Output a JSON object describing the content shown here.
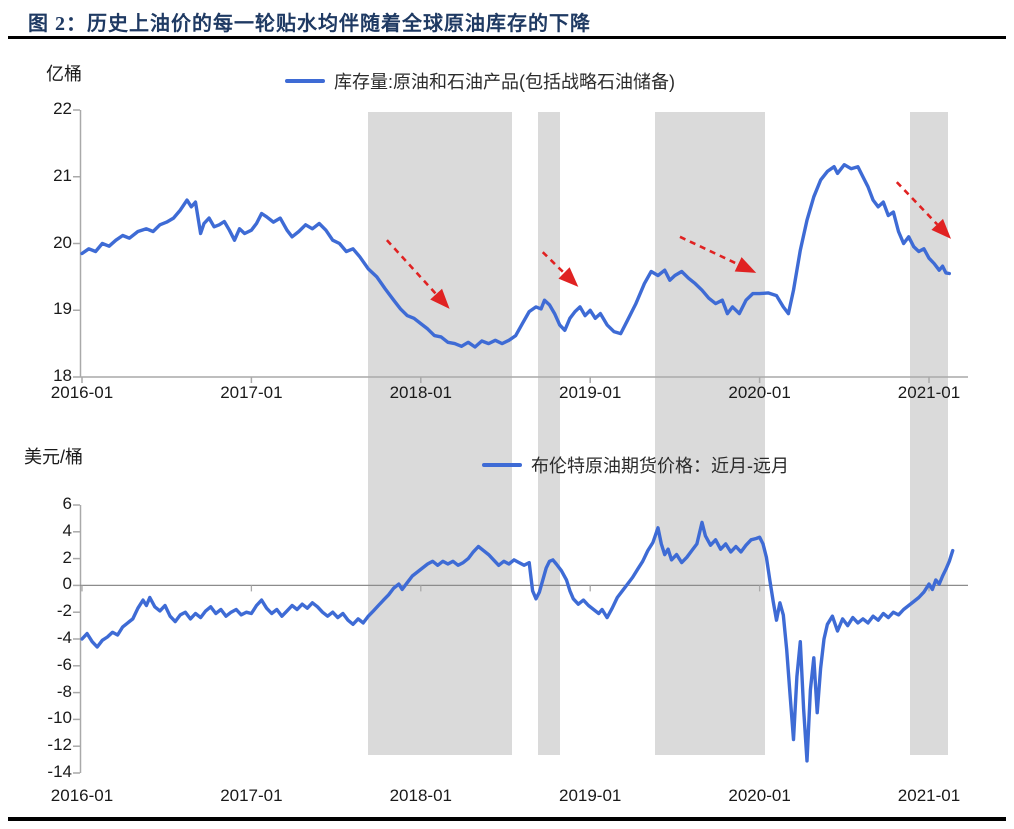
{
  "title": "图 2：历史上油价的每一轮贴水均伴随着全球原油库存的下降",
  "colors": {
    "line_blue": "#3E6BD5",
    "arrow_red": "#E02222",
    "band_gray": "#DADADA",
    "axis_gray": "#A9A9A9",
    "zero_line_gray": "#8C8C8C",
    "title_navy": "#1F3A63"
  },
  "shaded_bands": {
    "color": "#DADADA",
    "x_unit": "years_since_2016-01",
    "x_ranges": [
      [
        1.69,
        2.54
      ],
      [
        2.69,
        2.82
      ],
      [
        3.38,
        4.03
      ],
      [
        4.89,
        5.11
      ]
    ]
  },
  "chart_data": [
    {
      "type": "line",
      "legend": "库存量:原油和石油产品(包括战略石油储备)",
      "ylabel": "亿桶",
      "ylim": [
        18,
        22
      ],
      "yticks": [
        22,
        21,
        20,
        19,
        18
      ],
      "xticks": [
        "2016-01",
        "2017-01",
        "2018-01",
        "2019-01",
        "2020-01",
        "2021-01"
      ],
      "grid": false,
      "legend_position": "top-center",
      "arrows": [
        {
          "from": [
            1.8,
            20.05
          ],
          "to": [
            2.17,
            19.02
          ]
        },
        {
          "from": [
            2.72,
            19.87
          ],
          "to": [
            2.93,
            19.35
          ]
        },
        {
          "from": [
            3.53,
            20.1
          ],
          "to": [
            3.98,
            19.56
          ]
        },
        {
          "from": [
            4.81,
            20.92
          ],
          "to": [
            5.13,
            20.07
          ]
        }
      ],
      "points": [
        [
          0.0,
          19.85
        ],
        [
          0.04,
          19.92
        ],
        [
          0.08,
          19.88
        ],
        [
          0.12,
          20.0
        ],
        [
          0.16,
          19.96
        ],
        [
          0.2,
          20.05
        ],
        [
          0.24,
          20.12
        ],
        [
          0.28,
          20.08
        ],
        [
          0.33,
          20.18
        ],
        [
          0.38,
          20.22
        ],
        [
          0.42,
          20.18
        ],
        [
          0.46,
          20.28
        ],
        [
          0.5,
          20.32
        ],
        [
          0.54,
          20.38
        ],
        [
          0.58,
          20.5
        ],
        [
          0.62,
          20.65
        ],
        [
          0.645,
          20.55
        ],
        [
          0.67,
          20.62
        ],
        [
          0.7,
          20.15
        ],
        [
          0.72,
          20.3
        ],
        [
          0.75,
          20.38
        ],
        [
          0.78,
          20.25
        ],
        [
          0.81,
          20.28
        ],
        [
          0.84,
          20.33
        ],
        [
          0.87,
          20.2
        ],
        [
          0.9,
          20.05
        ],
        [
          0.93,
          20.22
        ],
        [
          0.96,
          20.15
        ],
        [
          1.0,
          20.2
        ],
        [
          1.03,
          20.3
        ],
        [
          1.06,
          20.45
        ],
        [
          1.09,
          20.4
        ],
        [
          1.13,
          20.32
        ],
        [
          1.17,
          20.38
        ],
        [
          1.21,
          20.2
        ],
        [
          1.24,
          20.1
        ],
        [
          1.28,
          20.18
        ],
        [
          1.32,
          20.28
        ],
        [
          1.36,
          20.22
        ],
        [
          1.4,
          20.3
        ],
        [
          1.44,
          20.2
        ],
        [
          1.48,
          20.05
        ],
        [
          1.52,
          20.0
        ],
        [
          1.56,
          19.88
        ],
        [
          1.6,
          19.92
        ],
        [
          1.64,
          19.8
        ],
        [
          1.69,
          19.62
        ],
        [
          1.74,
          19.5
        ],
        [
          1.79,
          19.32
        ],
        [
          1.84,
          19.15
        ],
        [
          1.88,
          19.02
        ],
        [
          1.92,
          18.92
        ],
        [
          1.96,
          18.88
        ],
        [
          2.0,
          18.8
        ],
        [
          2.04,
          18.72
        ],
        [
          2.08,
          18.62
        ],
        [
          2.12,
          18.6
        ],
        [
          2.16,
          18.52
        ],
        [
          2.2,
          18.5
        ],
        [
          2.24,
          18.46
        ],
        [
          2.28,
          18.52
        ],
        [
          2.32,
          18.45
        ],
        [
          2.36,
          18.54
        ],
        [
          2.4,
          18.5
        ],
        [
          2.44,
          18.55
        ],
        [
          2.48,
          18.5
        ],
        [
          2.52,
          18.55
        ],
        [
          2.56,
          18.62
        ],
        [
          2.6,
          18.8
        ],
        [
          2.64,
          18.98
        ],
        [
          2.68,
          19.05
        ],
        [
          2.71,
          19.02
        ],
        [
          2.73,
          19.15
        ],
        [
          2.76,
          19.08
        ],
        [
          2.79,
          18.95
        ],
        [
          2.82,
          18.78
        ],
        [
          2.85,
          18.7
        ],
        [
          2.88,
          18.88
        ],
        [
          2.91,
          18.98
        ],
        [
          2.94,
          19.05
        ],
        [
          2.97,
          18.92
        ],
        [
          3.0,
          19.0
        ],
        [
          3.03,
          18.88
        ],
        [
          3.06,
          18.95
        ],
        [
          3.1,
          18.78
        ],
        [
          3.14,
          18.68
        ],
        [
          3.18,
          18.65
        ],
        [
          3.22,
          18.85
        ],
        [
          3.27,
          19.1
        ],
        [
          3.32,
          19.4
        ],
        [
          3.36,
          19.58
        ],
        [
          3.4,
          19.52
        ],
        [
          3.44,
          19.6
        ],
        [
          3.47,
          19.45
        ],
        [
          3.5,
          19.52
        ],
        [
          3.54,
          19.58
        ],
        [
          3.58,
          19.48
        ],
        [
          3.62,
          19.4
        ],
        [
          3.66,
          19.3
        ],
        [
          3.7,
          19.18
        ],
        [
          3.74,
          19.1
        ],
        [
          3.78,
          19.15
        ],
        [
          3.81,
          18.95
        ],
        [
          3.84,
          19.05
        ],
        [
          3.88,
          18.95
        ],
        [
          3.92,
          19.15
        ],
        [
          3.96,
          19.25
        ],
        [
          4.0,
          19.25
        ],
        [
          4.05,
          19.26
        ],
        [
          4.1,
          19.22
        ],
        [
          4.14,
          19.05
        ],
        [
          4.17,
          18.95
        ],
        [
          4.2,
          19.3
        ],
        [
          4.24,
          19.9
        ],
        [
          4.28,
          20.35
        ],
        [
          4.32,
          20.7
        ],
        [
          4.36,
          20.95
        ],
        [
          4.4,
          21.08
        ],
        [
          4.44,
          21.15
        ],
        [
          4.46,
          21.05
        ],
        [
          4.5,
          21.18
        ],
        [
          4.54,
          21.12
        ],
        [
          4.58,
          21.15
        ],
        [
          4.61,
          21.0
        ],
        [
          4.64,
          20.85
        ],
        [
          4.67,
          20.65
        ],
        [
          4.7,
          20.55
        ],
        [
          4.73,
          20.62
        ],
        [
          4.76,
          20.42
        ],
        [
          4.79,
          20.47
        ],
        [
          4.82,
          20.18
        ],
        [
          4.85,
          20.0
        ],
        [
          4.88,
          20.1
        ],
        [
          4.91,
          19.95
        ],
        [
          4.94,
          19.88
        ],
        [
          4.97,
          19.92
        ],
        [
          5.0,
          19.78
        ],
        [
          5.03,
          19.7
        ],
        [
          5.06,
          19.6
        ],
        [
          5.08,
          19.66
        ],
        [
          5.1,
          19.56
        ],
        [
          5.12,
          19.55
        ]
      ]
    },
    {
      "type": "line",
      "legend": "布伦特原油期货价格：近月-远月",
      "ylabel": "美元/桶",
      "ylim": [
        -14,
        6
      ],
      "yticks": [
        6,
        4,
        2,
        0,
        -2,
        -4,
        -6,
        -8,
        -10,
        -12,
        -14
      ],
      "xticks": [
        "2016-01",
        "2017-01",
        "2018-01",
        "2019-01",
        "2020-01",
        "2021-01"
      ],
      "grid": false,
      "zero_axis": true,
      "points": [
        [
          0.0,
          -4.0
        ],
        [
          0.03,
          -3.6
        ],
        [
          0.06,
          -4.2
        ],
        [
          0.09,
          -4.6
        ],
        [
          0.12,
          -4.1
        ],
        [
          0.15,
          -3.85
        ],
        [
          0.18,
          -3.5
        ],
        [
          0.21,
          -3.7
        ],
        [
          0.24,
          -3.1
        ],
        [
          0.27,
          -2.8
        ],
        [
          0.3,
          -2.5
        ],
        [
          0.33,
          -1.7
        ],
        [
          0.36,
          -1.1
        ],
        [
          0.38,
          -1.5
        ],
        [
          0.4,
          -0.9
        ],
        [
          0.43,
          -1.6
        ],
        [
          0.46,
          -1.9
        ],
        [
          0.49,
          -1.5
        ],
        [
          0.52,
          -2.3
        ],
        [
          0.55,
          -2.7
        ],
        [
          0.58,
          -2.2
        ],
        [
          0.61,
          -2.0
        ],
        [
          0.64,
          -2.5
        ],
        [
          0.67,
          -2.1
        ],
        [
          0.7,
          -2.4
        ],
        [
          0.73,
          -1.9
        ],
        [
          0.76,
          -1.6
        ],
        [
          0.79,
          -2.1
        ],
        [
          0.82,
          -1.8
        ],
        [
          0.85,
          -2.3
        ],
        [
          0.88,
          -2.0
        ],
        [
          0.91,
          -1.8
        ],
        [
          0.94,
          -2.2
        ],
        [
          0.97,
          -2.0
        ],
        [
          1.0,
          -2.1
        ],
        [
          1.03,
          -1.5
        ],
        [
          1.06,
          -1.1
        ],
        [
          1.09,
          -1.7
        ],
        [
          1.12,
          -2.1
        ],
        [
          1.15,
          -1.8
        ],
        [
          1.18,
          -2.3
        ],
        [
          1.21,
          -1.9
        ],
        [
          1.24,
          -1.5
        ],
        [
          1.27,
          -1.8
        ],
        [
          1.3,
          -1.4
        ],
        [
          1.33,
          -1.7
        ],
        [
          1.36,
          -1.3
        ],
        [
          1.39,
          -1.6
        ],
        [
          1.42,
          -2.0
        ],
        [
          1.45,
          -2.3
        ],
        [
          1.48,
          -2.0
        ],
        [
          1.51,
          -2.4
        ],
        [
          1.54,
          -2.1
        ],
        [
          1.57,
          -2.6
        ],
        [
          1.6,
          -2.9
        ],
        [
          1.63,
          -2.5
        ],
        [
          1.66,
          -2.8
        ],
        [
          1.69,
          -2.3
        ],
        [
          1.72,
          -1.9
        ],
        [
          1.75,
          -1.5
        ],
        [
          1.78,
          -1.1
        ],
        [
          1.81,
          -0.7
        ],
        [
          1.84,
          -0.2
        ],
        [
          1.87,
          0.1
        ],
        [
          1.89,
          -0.3
        ],
        [
          1.92,
          0.2
        ],
        [
          1.95,
          0.7
        ],
        [
          1.98,
          1.0
        ],
        [
          2.01,
          1.3
        ],
        [
          2.04,
          1.6
        ],
        [
          2.07,
          1.8
        ],
        [
          2.1,
          1.5
        ],
        [
          2.13,
          1.8
        ],
        [
          2.16,
          1.6
        ],
        [
          2.19,
          1.8
        ],
        [
          2.22,
          1.5
        ],
        [
          2.25,
          1.7
        ],
        [
          2.28,
          2.0
        ],
        [
          2.31,
          2.5
        ],
        [
          2.34,
          2.9
        ],
        [
          2.37,
          2.6
        ],
        [
          2.4,
          2.3
        ],
        [
          2.43,
          1.9
        ],
        [
          2.46,
          1.5
        ],
        [
          2.49,
          1.8
        ],
        [
          2.52,
          1.6
        ],
        [
          2.55,
          1.9
        ],
        [
          2.58,
          1.7
        ],
        [
          2.61,
          1.5
        ],
        [
          2.64,
          1.7
        ],
        [
          2.66,
          -0.4
        ],
        [
          2.68,
          -1.0
        ],
        [
          2.7,
          -0.5
        ],
        [
          2.72,
          0.4
        ],
        [
          2.74,
          1.3
        ],
        [
          2.76,
          1.8
        ],
        [
          2.78,
          1.9
        ],
        [
          2.8,
          1.6
        ],
        [
          2.83,
          1.1
        ],
        [
          2.86,
          0.4
        ],
        [
          2.88,
          -0.4
        ],
        [
          2.9,
          -1.0
        ],
        [
          2.93,
          -1.4
        ],
        [
          2.96,
          -1.1
        ],
        [
          2.99,
          -1.5
        ],
        [
          3.02,
          -1.8
        ],
        [
          3.05,
          -2.1
        ],
        [
          3.07,
          -1.8
        ],
        [
          3.1,
          -2.4
        ],
        [
          3.13,
          -1.7
        ],
        [
          3.16,
          -0.9
        ],
        [
          3.19,
          -0.4
        ],
        [
          3.22,
          0.1
        ],
        [
          3.25,
          0.6
        ],
        [
          3.28,
          1.2
        ],
        [
          3.31,
          1.8
        ],
        [
          3.34,
          2.6
        ],
        [
          3.37,
          3.2
        ],
        [
          3.4,
          4.3
        ],
        [
          3.42,
          3.1
        ],
        [
          3.44,
          2.3
        ],
        [
          3.46,
          2.7
        ],
        [
          3.48,
          1.9
        ],
        [
          3.51,
          2.3
        ],
        [
          3.54,
          1.7
        ],
        [
          3.57,
          2.1
        ],
        [
          3.6,
          2.6
        ],
        [
          3.63,
          3.1
        ],
        [
          3.66,
          4.7
        ],
        [
          3.68,
          3.7
        ],
        [
          3.71,
          3.0
        ],
        [
          3.74,
          3.4
        ],
        [
          3.77,
          2.7
        ],
        [
          3.8,
          3.1
        ],
        [
          3.83,
          2.5
        ],
        [
          3.86,
          2.9
        ],
        [
          3.89,
          2.5
        ],
        [
          3.92,
          3.0
        ],
        [
          3.95,
          3.4
        ],
        [
          3.98,
          3.5
        ],
        [
          4.0,
          3.6
        ],
        [
          4.02,
          3.1
        ],
        [
          4.04,
          2.1
        ],
        [
          4.06,
          0.4
        ],
        [
          4.08,
          -1.2
        ],
        [
          4.1,
          -2.6
        ],
        [
          4.12,
          -1.3
        ],
        [
          4.14,
          -2.2
        ],
        [
          4.16,
          -4.8
        ],
        [
          4.18,
          -8.2
        ],
        [
          4.2,
          -11.5
        ],
        [
          4.22,
          -6.8
        ],
        [
          4.24,
          -4.2
        ],
        [
          4.26,
          -9.2
        ],
        [
          4.28,
          -13.1
        ],
        [
          4.3,
          -7.8
        ],
        [
          4.32,
          -5.4
        ],
        [
          4.34,
          -9.5
        ],
        [
          4.36,
          -6.2
        ],
        [
          4.38,
          -4.0
        ],
        [
          4.4,
          -2.9
        ],
        [
          4.43,
          -2.3
        ],
        [
          4.46,
          -3.4
        ],
        [
          4.49,
          -2.5
        ],
        [
          4.52,
          -3.0
        ],
        [
          4.55,
          -2.4
        ],
        [
          4.58,
          -2.8
        ],
        [
          4.61,
          -2.5
        ],
        [
          4.64,
          -2.8
        ],
        [
          4.67,
          -2.3
        ],
        [
          4.7,
          -2.6
        ],
        [
          4.73,
          -2.1
        ],
        [
          4.76,
          -2.4
        ],
        [
          4.79,
          -2.0
        ],
        [
          4.82,
          -2.2
        ],
        [
          4.85,
          -1.8
        ],
        [
          4.88,
          -1.5
        ],
        [
          4.91,
          -1.2
        ],
        [
          4.94,
          -0.9
        ],
        [
          4.97,
          -0.5
        ],
        [
          5.0,
          0.1
        ],
        [
          5.02,
          -0.3
        ],
        [
          5.04,
          0.4
        ],
        [
          5.06,
          0.1
        ],
        [
          5.08,
          0.7
        ],
        [
          5.1,
          1.2
        ],
        [
          5.12,
          1.8
        ],
        [
          5.14,
          2.6
        ]
      ]
    }
  ]
}
